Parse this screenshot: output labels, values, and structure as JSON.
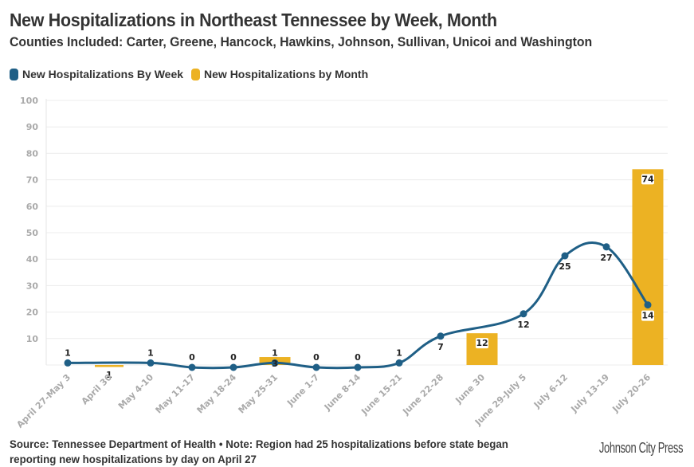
{
  "header": {
    "title": "New Hospitalizations in Northeast Tennessee by Week, Month",
    "subtitle": "Counties Included: Carter, Greene, Hancock, Hawkins, Johnson, Sullivan, Unicoi and Washington"
  },
  "legend": [
    {
      "label": "New Hospitalizations By Week",
      "color": "#1f5f86"
    },
    {
      "label": "New Hospitalizations by Month",
      "color": "#ecb223"
    }
  ],
  "footer": {
    "source": "Source: Tennessee Department of Health • Note: Region had 25 hospitalizations before state began reporting new hospitalizations by day on April 27",
    "brand": "Johnson City Press"
  },
  "chart_data": {
    "type": "bar",
    "title": "New Hospitalizations in Northeast Tennessee by Week, Month",
    "xlabel": "",
    "ylabel": "",
    "ylim": [
      0,
      100
    ],
    "yticks": [
      10,
      20,
      30,
      40,
      50,
      60,
      70,
      80,
      90,
      100
    ],
    "grid": true,
    "legend_position": "top-left",
    "categories": [
      "April 27-May 3",
      "April 30",
      "May 4-10",
      "May 11-17",
      "May 18-24",
      "May 25-31",
      "June 1-7",
      "June 8-14",
      "June 15-21",
      "June 22-28",
      "June 30",
      "June 29-July 5",
      "July 6-12",
      "July 13-19",
      "July 20-26"
    ],
    "series": [
      {
        "name": "New Hospitalizations By Week",
        "type": "line",
        "color": "#1f5f86",
        "values": [
          1,
          null,
          1,
          0,
          0,
          1,
          0,
          0,
          1,
          7,
          null,
          12,
          25,
          27,
          14
        ]
      },
      {
        "name": "New Hospitalizations by Month",
        "type": "bar",
        "color": "#ecb223",
        "values": [
          null,
          1,
          null,
          null,
          null,
          3,
          null,
          null,
          null,
          null,
          12,
          null,
          null,
          null,
          74
        ]
      }
    ]
  }
}
